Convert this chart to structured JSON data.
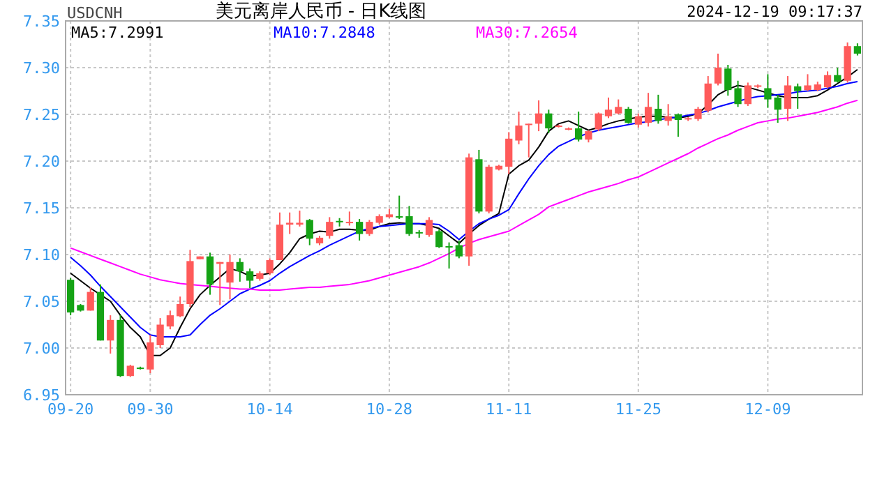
{
  "chart_data": {
    "type": "candlestick",
    "title": "美元离岸人民币 - 日K线图",
    "annotations": [
      "USDCNH",
      "2024-12-19 09:17:37"
    ],
    "categories": [
      "09-20",
      null,
      null,
      null,
      null,
      null,
      null,
      null,
      "09-30",
      null,
      null,
      null,
      null,
      null,
      null,
      null,
      null,
      null,
      null,
      null,
      "10-14",
      null,
      null,
      null,
      null,
      null,
      null,
      null,
      null,
      null,
      null,
      null,
      "10-28",
      null,
      null,
      null,
      null,
      null,
      null,
      null,
      null,
      null,
      null,
      null,
      "11-11",
      null,
      null,
      null,
      null,
      null,
      null,
      null,
      null,
      null,
      null,
      null,
      null,
      "11-25",
      null,
      null,
      null,
      null,
      null,
      null,
      null,
      null,
      null,
      null,
      null,
      null,
      "12-09",
      null,
      null,
      null,
      null,
      null,
      null,
      null,
      null,
      null
    ],
    "ohlc": [
      [
        7.073,
        7.075,
        7.035,
        7.038
      ],
      [
        7.046,
        7.047,
        7.039,
        7.04
      ],
      [
        7.04,
        7.065,
        7.04,
        7.06
      ],
      [
        7.06,
        7.068,
        7.008,
        7.008
      ],
      [
        7.008,
        7.035,
        6.994,
        7.03
      ],
      [
        7.03,
        7.035,
        6.969,
        6.97
      ],
      [
        6.97,
        6.982,
        6.969,
        6.981
      ],
      [
        6.979,
        6.98,
        6.977,
        6.978
      ],
      [
        6.977,
        7.014,
        6.973,
        7.006
      ],
      [
        7.003,
        7.032,
        7.0,
        7.025
      ],
      [
        7.023,
        7.04,
        7.02,
        7.035
      ],
      [
        7.034,
        7.055,
        7.033,
        7.047
      ],
      [
        7.047,
        7.105,
        7.044,
        7.093
      ],
      [
        7.095,
        7.098,
        7.095,
        7.098
      ],
      [
        7.098,
        7.102,
        7.057,
        7.068
      ],
      [
        7.09,
        7.092,
        7.046,
        7.092
      ],
      [
        7.07,
        7.1,
        7.052,
        7.092
      ],
      [
        7.092,
        7.096,
        7.071,
        7.082
      ],
      [
        7.082,
        7.085,
        7.064,
        7.072
      ],
      [
        7.074,
        7.082,
        7.072,
        7.08
      ],
      [
        7.08,
        7.096,
        7.078,
        7.094
      ],
      [
        7.094,
        7.145,
        7.094,
        7.132
      ],
      [
        7.132,
        7.145,
        7.122,
        7.134
      ],
      [
        7.132,
        7.147,
        7.13,
        7.134
      ],
      [
        7.137,
        7.138,
        7.11,
        7.117
      ],
      [
        7.112,
        7.12,
        7.11,
        7.118
      ],
      [
        7.12,
        7.14,
        7.117,
        7.135
      ],
      [
        7.136,
        7.139,
        7.13,
        7.135
      ],
      [
        7.134,
        7.146,
        7.131,
        7.135
      ],
      [
        7.135,
        7.138,
        7.115,
        7.122
      ],
      [
        7.122,
        7.137,
        7.12,
        7.135
      ],
      [
        7.134,
        7.143,
        7.132,
        7.141
      ],
      [
        7.14,
        7.149,
        7.139,
        7.143
      ],
      [
        7.141,
        7.163,
        7.138,
        7.14
      ],
      [
        7.141,
        7.152,
        7.12,
        7.122
      ],
      [
        7.124,
        7.126,
        7.118,
        7.123
      ],
      [
        7.121,
        7.14,
        7.119,
        7.137
      ],
      [
        7.125,
        7.127,
        7.107,
        7.108
      ],
      [
        7.109,
        7.113,
        7.085,
        7.108
      ],
      [
        7.11,
        7.115,
        7.096,
        7.098
      ],
      [
        7.098,
        7.208,
        7.088,
        7.204
      ],
      [
        7.202,
        7.212,
        7.144,
        7.146
      ],
      [
        7.146,
        7.196,
        7.144,
        7.194
      ],
      [
        7.191,
        7.196,
        7.19,
        7.195
      ],
      [
        7.194,
        7.231,
        7.186,
        7.224
      ],
      [
        7.222,
        7.253,
        7.218,
        7.238
      ],
      [
        7.239,
        7.24,
        7.204,
        7.24
      ],
      [
        7.24,
        7.265,
        7.232,
        7.251
      ],
      [
        7.251,
        7.255,
        7.23,
        7.235
      ],
      [
        7.237,
        7.239,
        7.236,
        7.238
      ],
      [
        7.234,
        7.236,
        7.233,
        7.235
      ],
      [
        7.235,
        7.253,
        7.221,
        7.223
      ],
      [
        7.223,
        7.233,
        7.22,
        7.232
      ],
      [
        7.234,
        7.252,
        7.232,
        7.251
      ],
      [
        7.248,
        7.268,
        7.246,
        7.255
      ],
      [
        7.251,
        7.266,
        7.25,
        7.258
      ],
      [
        7.256,
        7.258,
        7.24,
        7.241
      ],
      [
        7.239,
        7.251,
        7.236,
        7.248
      ],
      [
        7.241,
        7.273,
        7.237,
        7.258
      ],
      [
        7.256,
        7.271,
        7.24,
        7.243
      ],
      [
        7.243,
        7.261,
        7.238,
        7.248
      ],
      [
        7.25,
        7.251,
        7.226,
        7.244
      ],
      [
        7.245,
        7.247,
        7.243,
        7.246
      ],
      [
        7.245,
        7.258,
        7.243,
        7.256
      ],
      [
        7.254,
        7.291,
        7.252,
        7.283
      ],
      [
        7.283,
        7.315,
        7.281,
        7.3
      ],
      [
        7.299,
        7.303,
        7.27,
        7.276
      ],
      [
        7.278,
        7.286,
        7.258,
        7.261
      ],
      [
        7.261,
        7.284,
        7.259,
        7.281
      ],
      [
        7.28,
        7.282,
        7.278,
        7.281
      ],
      [
        7.278,
        7.293,
        7.257,
        7.266
      ],
      [
        7.268,
        7.271,
        7.241,
        7.255
      ],
      [
        7.256,
        7.291,
        7.243,
        7.281
      ],
      [
        7.28,
        7.283,
        7.256,
        7.275
      ],
      [
        7.276,
        7.293,
        7.275,
        7.281
      ],
      [
        7.276,
        7.285,
        7.275,
        7.282
      ],
      [
        7.279,
        7.296,
        7.278,
        7.292
      ],
      [
        7.292,
        7.3,
        7.284,
        7.285
      ],
      [
        7.286,
        7.327,
        7.284,
        7.323
      ],
      [
        7.323,
        7.326,
        7.313,
        7.315
      ]
    ],
    "colors": [
      "#15a315",
      "#15a315",
      "#ff5a5a",
      "#15a315",
      "#ff5a5a",
      "#15a315",
      "#ff5a5a",
      "#15a315",
      "#ff5a5a",
      "#ff5a5a",
      "#ff5a5a",
      "#ff5a5a",
      "#ff5a5a",
      "#ff5a5a",
      "#15a315",
      "#ff5a5a",
      "#ff5a5a",
      "#15a315",
      "#15a315",
      "#ff5a5a",
      "#ff5a5a",
      "#ff5a5a",
      "#ff5a5a",
      "#ff5a5a",
      "#15a315",
      "#ff5a5a",
      "#ff5a5a",
      "#15a315",
      "#ff5a5a",
      "#15a315",
      "#ff5a5a",
      "#ff5a5a",
      "#ff5a5a",
      "#15a315",
      "#15a315",
      "#15a315",
      "#ff5a5a",
      "#15a315",
      "#15a315",
      "#15a315",
      "#ff5a5a",
      "#15a315",
      "#ff5a5a",
      "#ff5a5a",
      "#ff5a5a",
      "#ff5a5a",
      "#ff5a5a",
      "#ff5a5a",
      "#15a315",
      "#ff5a5a",
      "#ff5a5a",
      "#15a315",
      "#ff5a5a",
      "#ff5a5a",
      "#ff5a5a",
      "#ff5a5a",
      "#15a315",
      "#ff5a5a",
      "#ff5a5a",
      "#15a315",
      "#ff5a5a",
      "#15a315",
      "#ff5a5a",
      "#ff5a5a",
      "#ff5a5a",
      "#ff5a5a",
      "#15a315",
      "#15a315",
      "#ff5a5a",
      "#ff5a5a",
      "#15a315",
      "#15a315",
      "#ff5a5a",
      "#15a315",
      "#ff5a5a",
      "#ff5a5a",
      "#ff5a5a",
      "#15a315",
      "#ff5a5a",
      "#15a315"
    ],
    "series": [
      {
        "name": "MA5:7.2991",
        "type": "line",
        "color": "#000000",
        "values": [
          7.08,
          7.072,
          7.064,
          7.057,
          7.05,
          7.035,
          7.022,
          7.012,
          6.992,
          6.992,
          7.0,
          7.022,
          7.042,
          7.057,
          7.067,
          7.076,
          7.085,
          7.082,
          7.077,
          7.078,
          7.08,
          7.09,
          7.102,
          7.117,
          7.122,
          7.125,
          7.124,
          7.127,
          7.127,
          7.126,
          7.126,
          7.13,
          7.133,
          7.134,
          7.133,
          7.133,
          7.131,
          7.128,
          7.12,
          7.112,
          7.122,
          7.131,
          7.138,
          7.144,
          7.186,
          7.195,
          7.201,
          7.215,
          7.232,
          7.24,
          7.243,
          7.238,
          7.233,
          7.236,
          7.24,
          7.243,
          7.245,
          7.247,
          7.248,
          7.248,
          7.247,
          7.246,
          7.248,
          7.251,
          7.26,
          7.271,
          7.277,
          7.281,
          7.279,
          7.276,
          7.273,
          7.27,
          7.268,
          7.268,
          7.268,
          7.27,
          7.276,
          7.283,
          7.29,
          7.298
        ]
      },
      {
        "name": "MA10:7.2848",
        "type": "line",
        "color": "#0000ff",
        "values": [
          7.097,
          7.088,
          7.078,
          7.066,
          7.055,
          7.044,
          7.033,
          7.022,
          7.014,
          7.012,
          7.012,
          7.012,
          7.014,
          7.025,
          7.035,
          7.042,
          7.05,
          7.058,
          7.063,
          7.067,
          7.072,
          7.08,
          7.087,
          7.093,
          7.099,
          7.104,
          7.11,
          7.115,
          7.12,
          7.125,
          7.128,
          7.13,
          7.131,
          7.132,
          7.133,
          7.133,
          7.133,
          7.132,
          7.125,
          7.116,
          7.125,
          7.133,
          7.138,
          7.142,
          7.148,
          7.165,
          7.181,
          7.195,
          7.207,
          7.216,
          7.221,
          7.226,
          7.23,
          7.233,
          7.235,
          7.237,
          7.239,
          7.241,
          7.242,
          7.244,
          7.246,
          7.247,
          7.249,
          7.251,
          7.254,
          7.258,
          7.261,
          7.264,
          7.267,
          7.269,
          7.27,
          7.271,
          7.272,
          7.274,
          7.275,
          7.276,
          7.278,
          7.28,
          7.283,
          7.285
        ]
      },
      {
        "name": "MA30:7.2654",
        "type": "line",
        "color": "#ff00ff",
        "values": [
          7.107,
          7.103,
          7.099,
          7.095,
          7.091,
          7.087,
          7.083,
          7.079,
          7.076,
          7.073,
          7.071,
          7.069,
          7.068,
          7.067,
          7.066,
          7.065,
          7.064,
          7.063,
          7.063,
          7.062,
          7.062,
          7.062,
          7.063,
          7.064,
          7.065,
          7.065,
          7.066,
          7.067,
          7.068,
          7.07,
          7.072,
          7.075,
          7.078,
          7.081,
          7.084,
          7.087,
          7.091,
          7.096,
          7.101,
          7.107,
          7.112,
          7.116,
          7.119,
          7.122,
          7.125,
          7.131,
          7.137,
          7.143,
          7.151,
          7.155,
          7.159,
          7.163,
          7.167,
          7.17,
          7.173,
          7.176,
          7.18,
          7.183,
          7.188,
          7.193,
          7.198,
          7.203,
          7.208,
          7.214,
          7.219,
          7.224,
          7.228,
          7.233,
          7.237,
          7.241,
          7.243,
          7.245,
          7.246,
          7.248,
          7.25,
          7.252,
          7.255,
          7.258,
          7.262,
          7.265
        ]
      }
    ],
    "ylim": [
      6.95,
      7.35
    ],
    "yticks": [
      {
        "value": 6.95,
        "label": "6.95"
      },
      {
        "value": 7.0,
        "label": "7.00"
      },
      {
        "value": 7.05,
        "label": "7.05"
      },
      {
        "value": 7.1,
        "label": "7.10"
      },
      {
        "value": 7.15,
        "label": "7.15"
      },
      {
        "value": 7.2,
        "label": "7.20"
      },
      {
        "value": 7.25,
        "label": "7.25"
      },
      {
        "value": 7.3,
        "label": "7.30"
      },
      {
        "value": 7.35,
        "label": "7.35"
      }
    ],
    "grid": true,
    "legend": "top left"
  }
}
